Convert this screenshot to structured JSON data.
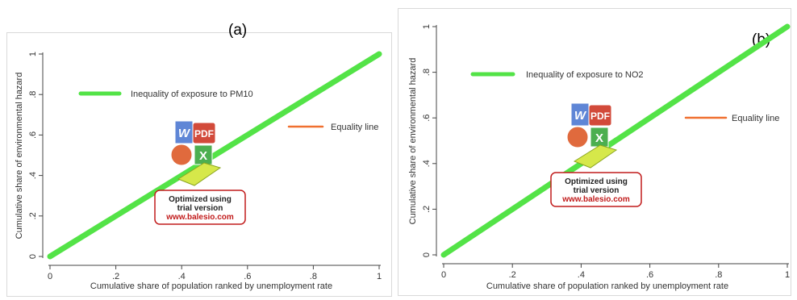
{
  "panels": [
    {
      "label": "(a)"
    },
    {
      "label": "(b)"
    }
  ],
  "watermark": {
    "title": "Optimized using",
    "line2": "trial version",
    "url": "www.balesio.com",
    "badge": "PDF",
    "word_letter": "W",
    "excel_letter": "X"
  },
  "colors": {
    "inequality": "#53e347",
    "equality": "#f07030",
    "watermark_red": "#c11b1b",
    "axis": "#444444"
  },
  "chart_data": [
    {
      "type": "line",
      "xlabel": "Cumulative share of population ranked by unemployment rate",
      "ylabel": "Cumulative share of environmental hazard",
      "x_ticks": [
        0,
        0.2,
        0.4,
        0.6,
        0.8,
        1
      ],
      "x_tick_labels": [
        "0",
        ".2",
        ".4",
        ".6",
        ".8",
        "1"
      ],
      "y_ticks": [
        0,
        0.2,
        0.4,
        0.6,
        0.8,
        1
      ],
      "y_tick_labels": [
        "0",
        ".2",
        ".4",
        ".6",
        ".8",
        "1"
      ],
      "xlim": [
        0,
        1
      ],
      "ylim": [
        0,
        1
      ],
      "grid": false,
      "series": [
        {
          "name": "Inequality of exposure to PM10",
          "x": [
            0,
            0.2,
            0.4,
            0.6,
            0.8,
            1
          ],
          "y": [
            0,
            0.2,
            0.4,
            0.6,
            0.8,
            1
          ]
        },
        {
          "name": "Equality line",
          "x": [
            0,
            1
          ],
          "y": [
            0,
            1
          ]
        }
      ],
      "legend": [
        "Inequality of exposure to PM10",
        "Equality line"
      ]
    },
    {
      "type": "line",
      "xlabel": "Cumulative share of population ranked by unemployment rate",
      "ylabel": "Cumulative share of environmental hazard",
      "x_ticks": [
        0,
        0.2,
        0.4,
        0.6,
        0.8,
        1
      ],
      "x_tick_labels": [
        "0",
        ".2",
        ".4",
        ".6",
        ".8",
        "1"
      ],
      "y_ticks": [
        0,
        0.2,
        0.4,
        0.6,
        0.8,
        1
      ],
      "y_tick_labels": [
        "0",
        ".2",
        ".4",
        ".6",
        ".8",
        "1"
      ],
      "xlim": [
        0,
        1
      ],
      "ylim": [
        0,
        1
      ],
      "grid": false,
      "series": [
        {
          "name": "Inequality of exposure to NO2",
          "x": [
            0,
            0.2,
            0.4,
            0.6,
            0.8,
            1
          ],
          "y": [
            0,
            0.2,
            0.4,
            0.6,
            0.8,
            1
          ]
        },
        {
          "name": "Equality line",
          "x": [
            0,
            1
          ],
          "y": [
            0,
            1
          ]
        }
      ],
      "legend": [
        "Inequality of exposure to NO2",
        "Equality line"
      ]
    }
  ]
}
